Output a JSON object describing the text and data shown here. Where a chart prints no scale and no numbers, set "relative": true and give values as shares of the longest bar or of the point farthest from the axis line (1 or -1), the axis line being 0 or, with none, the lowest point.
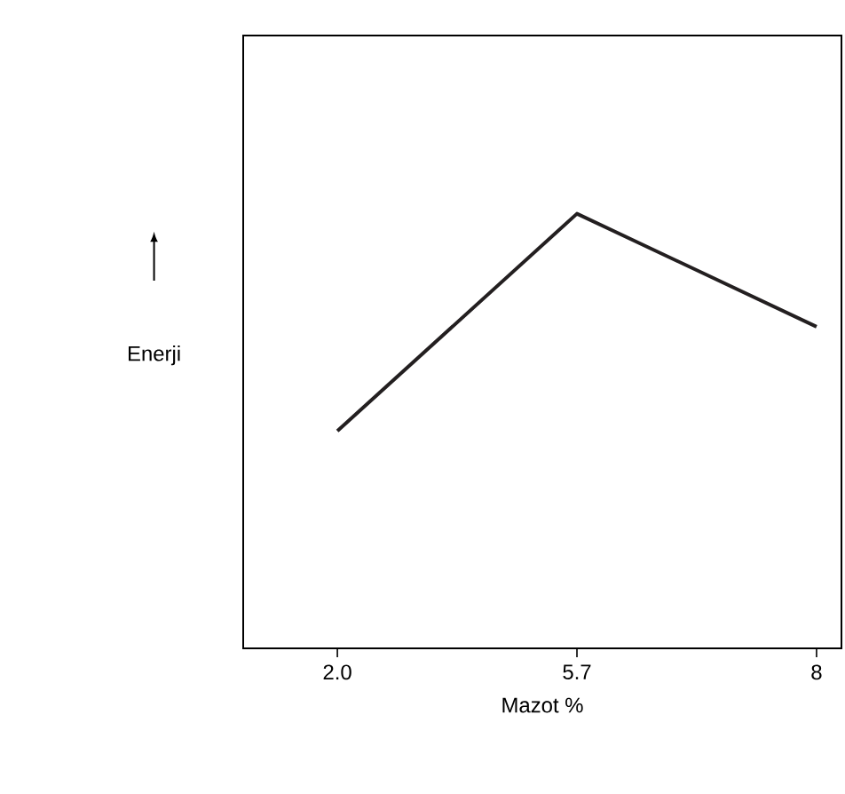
{
  "chart_data": {
    "type": "line",
    "xlabel": "Mazot %",
    "ylabel": "Enerji",
    "categories": [
      "2.0",
      "5.7",
      "8"
    ],
    "values": [
      0.5,
      1,
      0.74
    ],
    "color": "#231f20",
    "relative": true
  }
}
